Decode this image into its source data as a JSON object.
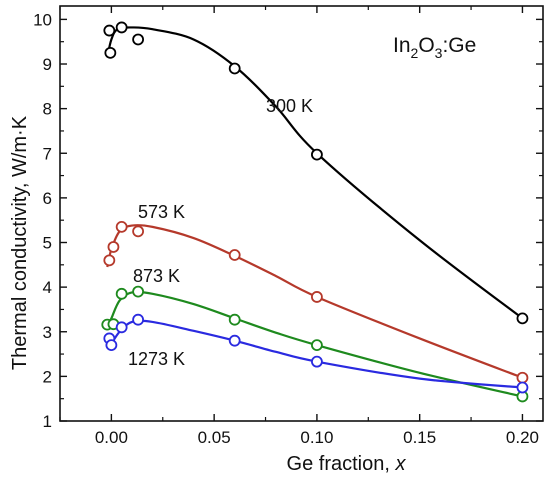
{
  "chart_data": {
    "type": "scatter",
    "title": "",
    "xlabel": "Ge fraction, ",
    "xlabel_var": "x",
    "ylabel": "Thermal conductivity, W/m·K",
    "xlim": [
      -0.025,
      0.21
    ],
    "ylim": [
      1,
      10.3
    ],
    "xticks": [
      0.0,
      0.05,
      0.1,
      0.15,
      0.2
    ],
    "xtick_labels": [
      "0.00",
      "0.05",
      "0.10",
      "0.15",
      "0.20"
    ],
    "yticks": [
      1,
      2,
      3,
      4,
      5,
      6,
      7,
      8,
      9,
      10
    ],
    "ytick_labels": [
      "1",
      "2",
      "3",
      "4",
      "5",
      "6",
      "7",
      "8",
      "9",
      "10"
    ],
    "grid": false,
    "annotation": {
      "base1": "In",
      "sub1": "2",
      "base2": "O",
      "sub2": "3",
      "rest": ":Ge"
    },
    "series": [
      {
        "name": "300 K",
        "color": "#000000",
        "points": [
          [
            -0.001,
            9.75
          ],
          [
            -0.0005,
            9.25
          ],
          [
            0.005,
            9.82
          ],
          [
            0.013,
            9.55
          ],
          [
            0.06,
            8.9
          ],
          [
            0.1,
            6.97
          ],
          [
            0.2,
            3.3
          ]
        ],
        "fit": [
          [
            -0.002,
            9.15
          ],
          [
            0.0,
            9.55
          ],
          [
            0.003,
            9.78
          ],
          [
            0.01,
            9.82
          ],
          [
            0.02,
            9.78
          ],
          [
            0.04,
            9.55
          ],
          [
            0.06,
            8.95
          ],
          [
            0.08,
            8.05
          ],
          [
            0.1,
            7.0
          ],
          [
            0.15,
            5.05
          ],
          [
            0.2,
            3.3
          ]
        ]
      },
      {
        "name": "573 K",
        "color": "#b5392b",
        "points": [
          [
            -0.001,
            4.6
          ],
          [
            0.001,
            4.9
          ],
          [
            0.005,
            5.35
          ],
          [
            0.013,
            5.25
          ],
          [
            0.06,
            4.72
          ],
          [
            0.1,
            3.78
          ],
          [
            0.2,
            1.97
          ]
        ],
        "fit": [
          [
            -0.002,
            4.45
          ],
          [
            0.0,
            4.85
          ],
          [
            0.004,
            5.25
          ],
          [
            0.01,
            5.38
          ],
          [
            0.02,
            5.35
          ],
          [
            0.04,
            5.1
          ],
          [
            0.06,
            4.7
          ],
          [
            0.08,
            4.25
          ],
          [
            0.1,
            3.78
          ],
          [
            0.15,
            2.85
          ],
          [
            0.2,
            1.97
          ]
        ]
      },
      {
        "name": "873 K",
        "color": "#1e8a1e",
        "points": [
          [
            -0.002,
            3.16
          ],
          [
            0.001,
            3.17
          ],
          [
            0.005,
            3.85
          ],
          [
            0.013,
            3.9
          ],
          [
            0.06,
            3.27
          ],
          [
            0.1,
            2.7
          ],
          [
            0.2,
            1.55
          ]
        ],
        "fit": [
          [
            -0.002,
            3.1
          ],
          [
            0.0,
            3.3
          ],
          [
            0.004,
            3.7
          ],
          [
            0.01,
            3.88
          ],
          [
            0.02,
            3.85
          ],
          [
            0.04,
            3.62
          ],
          [
            0.06,
            3.3
          ],
          [
            0.08,
            2.98
          ],
          [
            0.1,
            2.7
          ],
          [
            0.15,
            2.08
          ],
          [
            0.2,
            1.55
          ]
        ]
      },
      {
        "name": "1273 K",
        "color": "#2a2ae0",
        "points": [
          [
            -0.001,
            2.85
          ],
          [
            0.0,
            2.7
          ],
          [
            0.005,
            3.1
          ],
          [
            0.013,
            3.27
          ],
          [
            0.06,
            2.8
          ],
          [
            0.1,
            2.33
          ],
          [
            0.2,
            1.75
          ]
        ],
        "fit": [
          [
            -0.002,
            2.8
          ],
          [
            0.0,
            2.75
          ],
          [
            0.004,
            3.0
          ],
          [
            0.01,
            3.22
          ],
          [
            0.02,
            3.22
          ],
          [
            0.04,
            3.02
          ],
          [
            0.06,
            2.8
          ],
          [
            0.08,
            2.55
          ],
          [
            0.1,
            2.33
          ],
          [
            0.15,
            1.95
          ],
          [
            0.2,
            1.75
          ]
        ]
      }
    ]
  }
}
